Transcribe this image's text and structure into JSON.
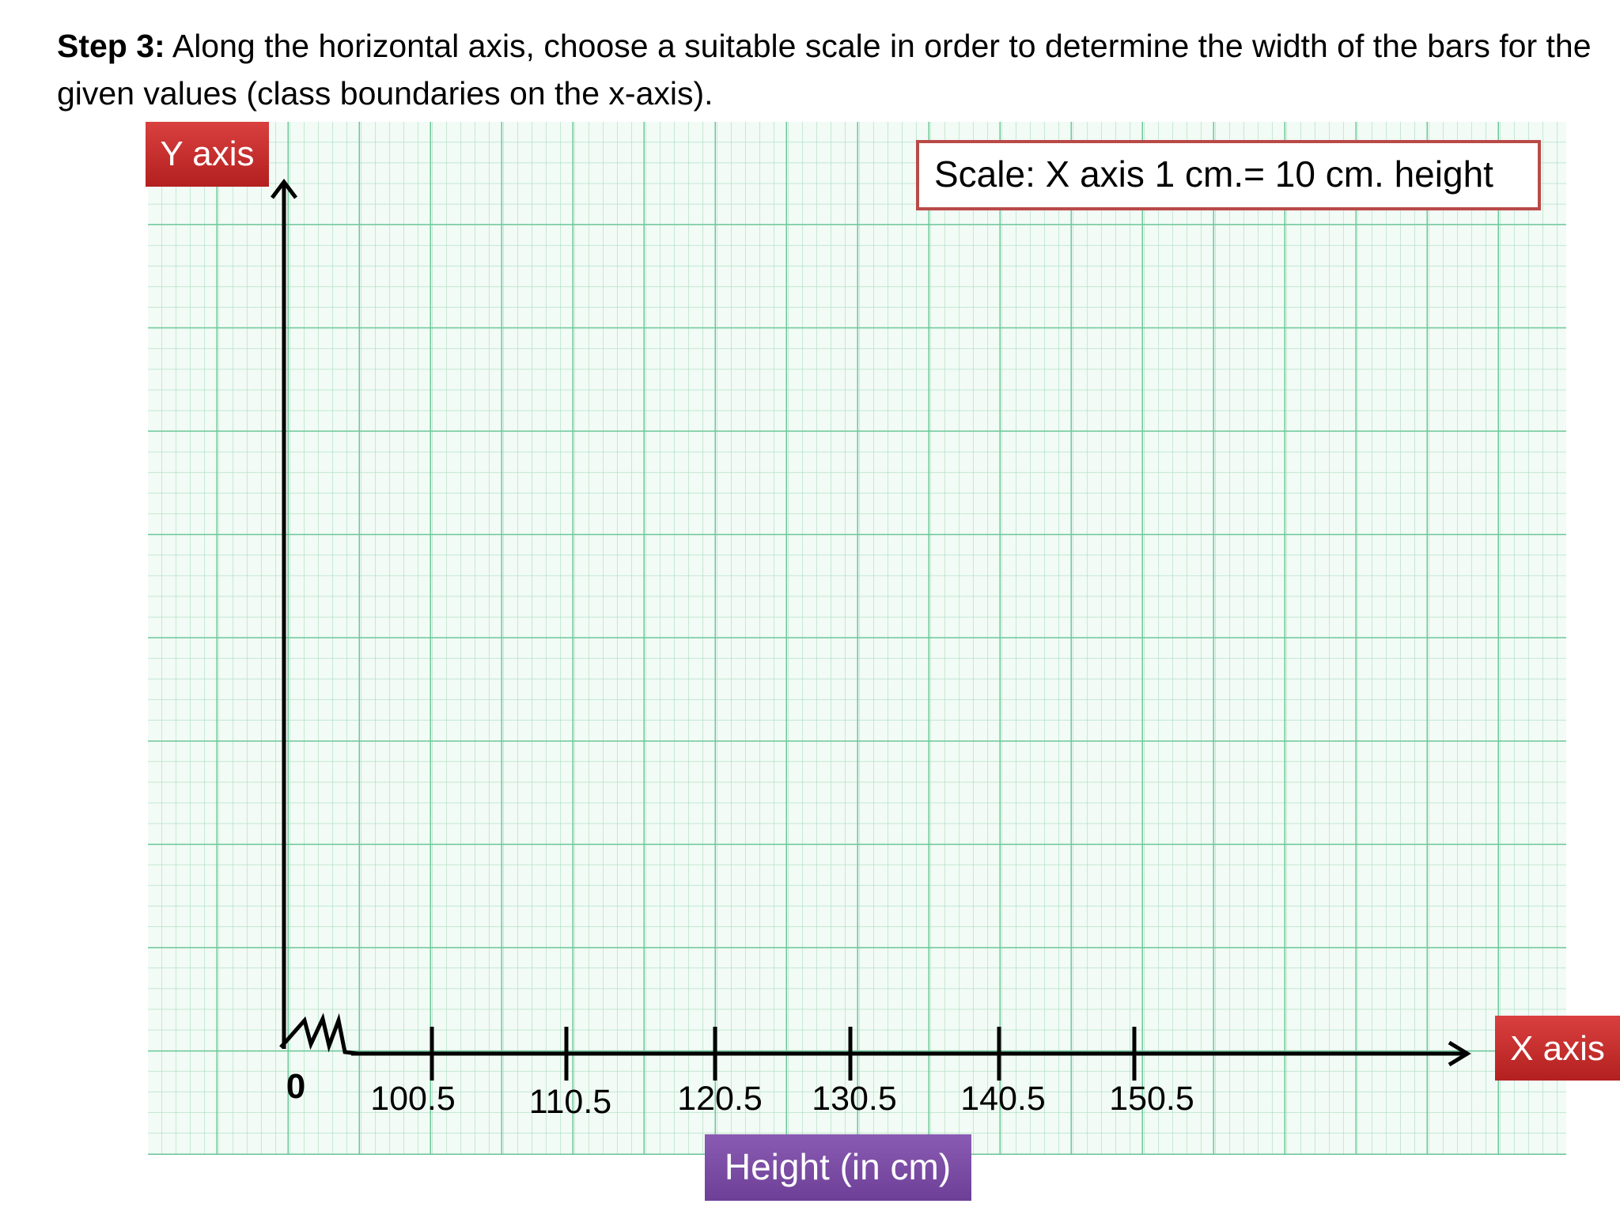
{
  "heading": {
    "step": "Step 3:",
    "text": "Along the horizontal axis, choose a suitable scale in order to determine the width of the bars for the given values (class boundaries on the x-axis)."
  },
  "graph": {
    "y_axis_label": "Y axis",
    "x_axis_label": "X axis",
    "scale_note": "Scale: X axis 1 cm.= 10 cm. height",
    "origin": "0",
    "x_ticks": [
      100.5,
      110.5,
      120.5,
      130.5,
      140.5,
      150.5
    ],
    "x_title": "Height (in cm)"
  }
}
